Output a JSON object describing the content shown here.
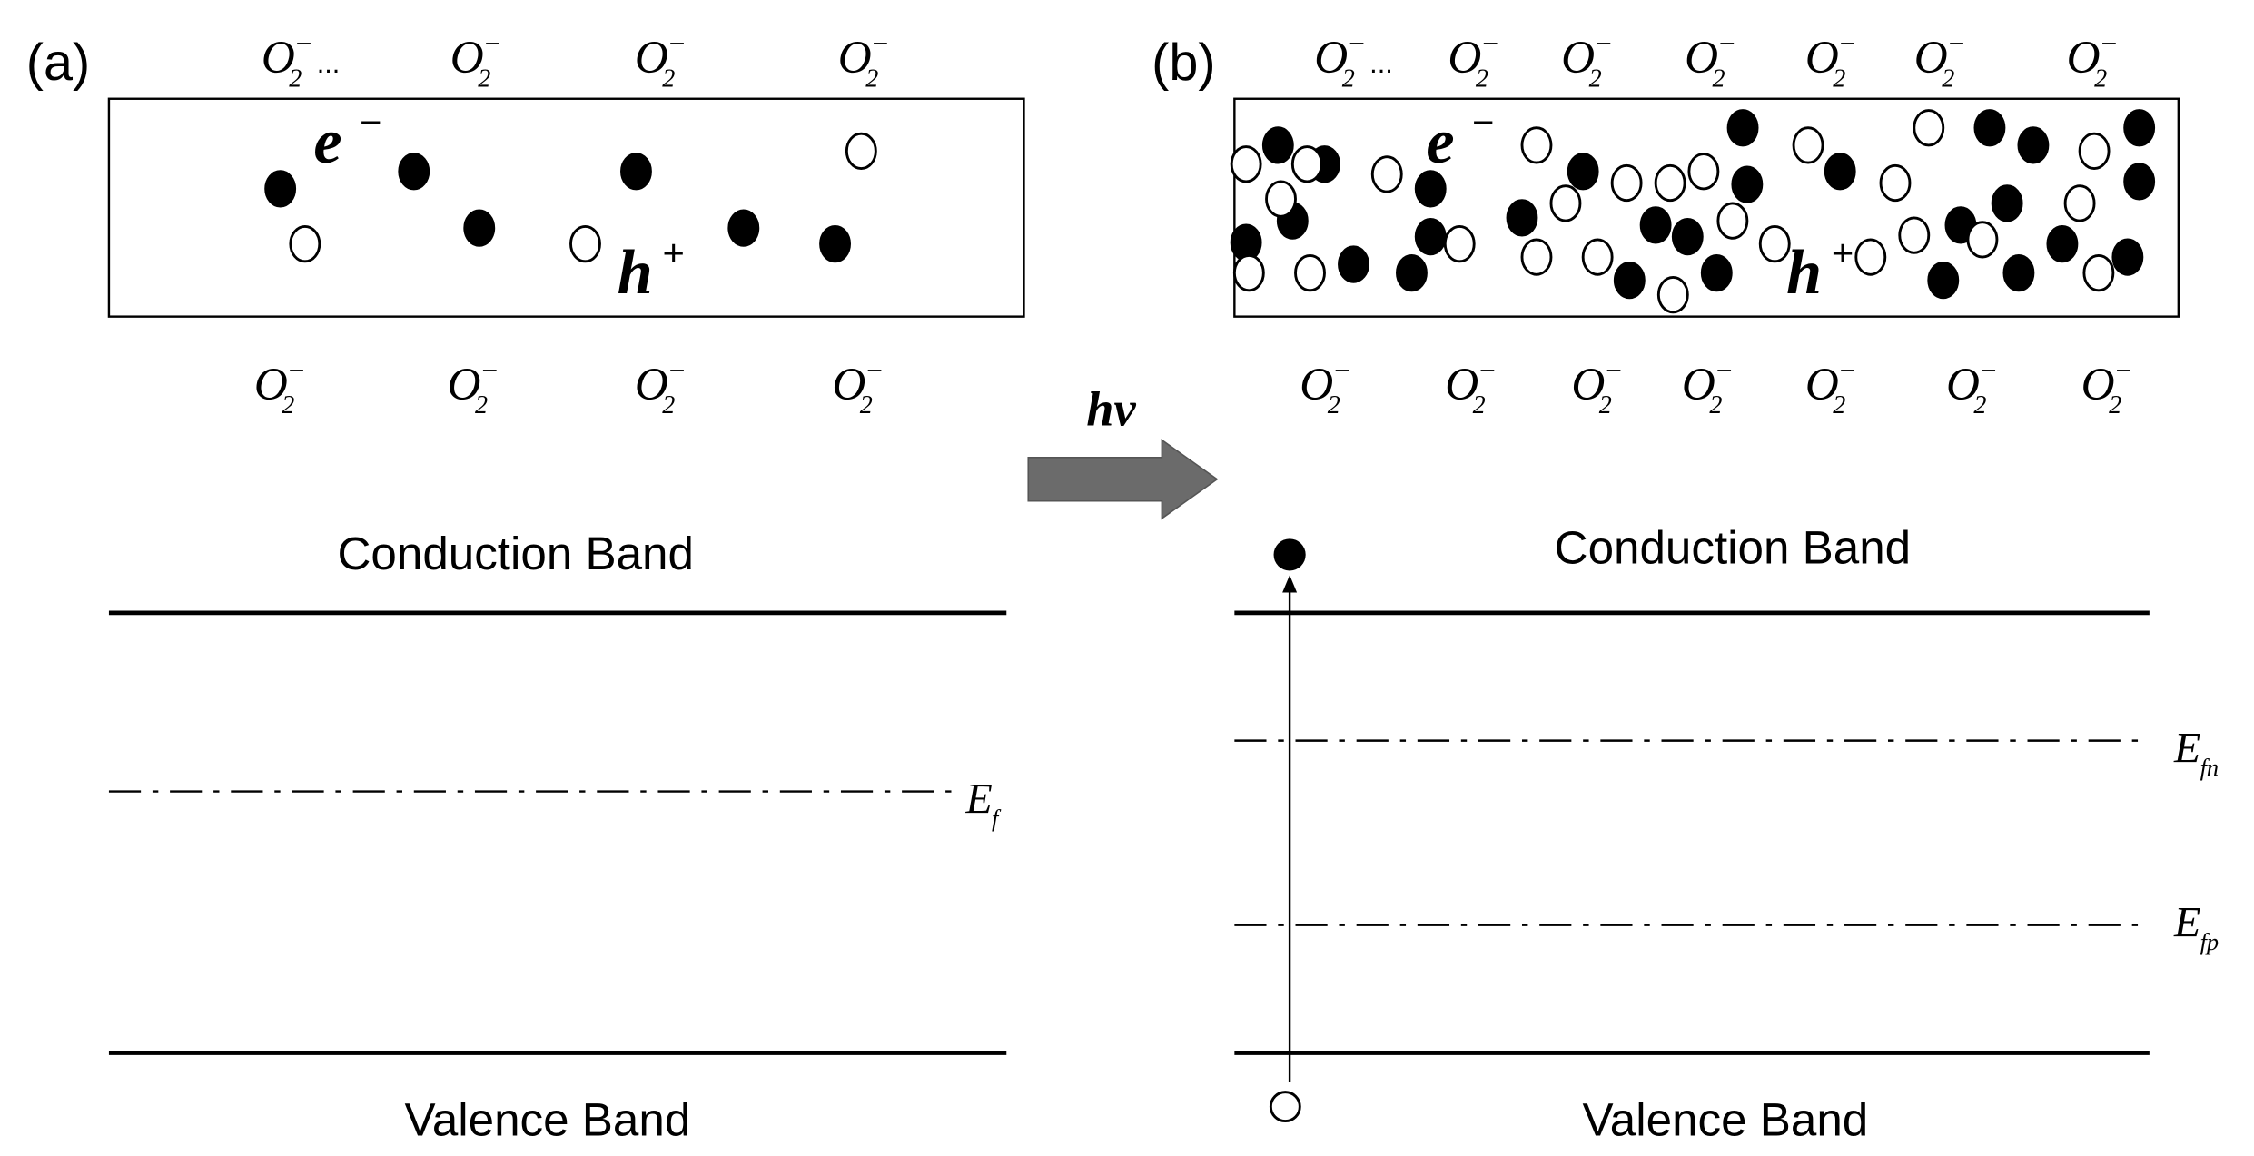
{
  "panel_a": {
    "label": "(a)",
    "top_ions": [
      {
        "base": "O",
        "sub": "2",
        "sup": "−",
        "trail": "..."
      },
      {
        "base": "O",
        "sub": "2",
        "sup": "−"
      },
      {
        "base": "O",
        "sub": "2",
        "sup": "−"
      },
      {
        "base": "O",
        "sub": "2",
        "sup": "−"
      }
    ],
    "bottom_ions": [
      {
        "base": "O",
        "sub": "2",
        "sup": "−"
      },
      {
        "base": "O",
        "sub": "2",
        "sup": "−"
      },
      {
        "base": "O",
        "sub": "2",
        "sup": "−"
      },
      {
        "base": "O",
        "sub": "2",
        "sup": "−"
      }
    ],
    "electron": {
      "base": "e",
      "sup": "−"
    },
    "hole": {
      "base": "h",
      "sup": "+"
    },
    "conduction_band": "Conduction Band",
    "valence_band": "Valence Band",
    "fermi_levels": [
      {
        "base": "E",
        "sub": "f"
      }
    ]
  },
  "arrow_label": "hν",
  "panel_b": {
    "label": "(b)",
    "top_ions": [
      {
        "base": "O",
        "sub": "2",
        "sup": "−",
        "trail": "..."
      },
      {
        "base": "O",
        "sub": "2",
        "sup": "−"
      },
      {
        "base": "O",
        "sub": "2",
        "sup": "−"
      },
      {
        "base": "O",
        "sub": "2",
        "sup": "−"
      },
      {
        "base": "O",
        "sub": "2",
        "sup": "−"
      },
      {
        "base": "O",
        "sub": "2",
        "sup": "−"
      },
      {
        "base": "O",
        "sub": "2",
        "sup": "−"
      }
    ],
    "bottom_ions": [
      {
        "base": "O",
        "sub": "2",
        "sup": "−"
      },
      {
        "base": "O",
        "sub": "2",
        "sup": "−"
      },
      {
        "base": "O",
        "sub": "2",
        "sup": "−"
      },
      {
        "base": "O",
        "sub": "2",
        "sup": "−"
      },
      {
        "base": "O",
        "sub": "2",
        "sup": "−"
      },
      {
        "base": "O",
        "sub": "2",
        "sup": "−"
      },
      {
        "base": "O",
        "sub": "2",
        "sup": "−"
      }
    ],
    "electron": {
      "base": "e",
      "sup": "−"
    },
    "hole": {
      "base": "h",
      "sup": "+"
    },
    "conduction_band": "Conduction Band",
    "valence_band": "Valence Band",
    "fermi_levels": [
      {
        "base": "E",
        "sub": "fn"
      },
      {
        "base": "E",
        "sub": "fp"
      }
    ]
  }
}
